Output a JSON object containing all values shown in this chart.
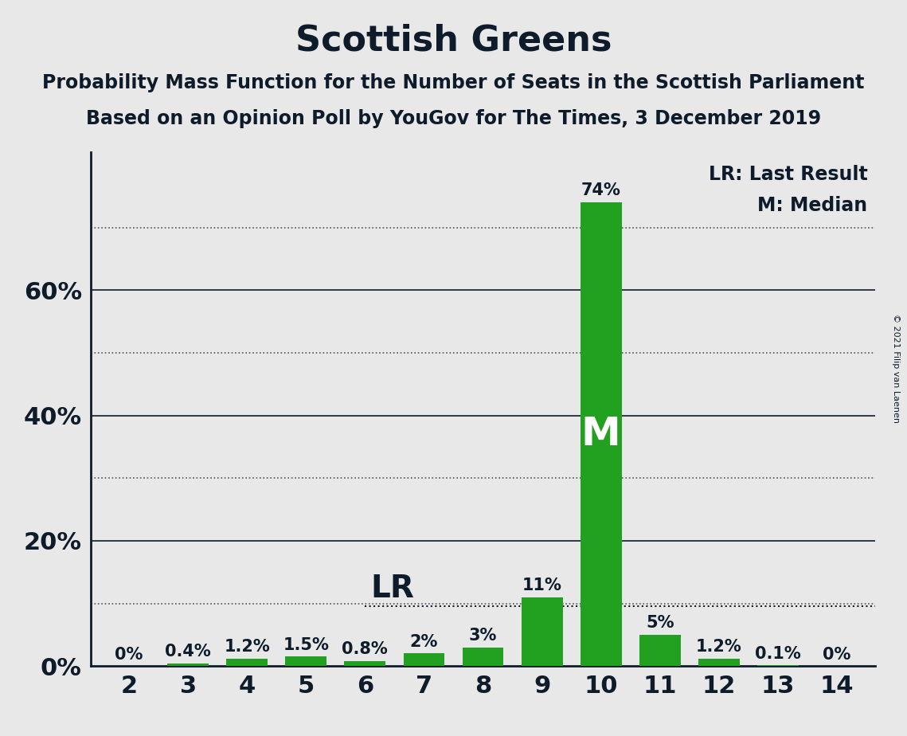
{
  "title": "Scottish Greens",
  "subtitle1": "Probability Mass Function for the Number of Seats in the Scottish Parliament",
  "subtitle2": "Based on an Opinion Poll by YouGov for The Times, 3 December 2019",
  "copyright": "© 2021 Filip van Laenen",
  "seats": [
    2,
    3,
    4,
    5,
    6,
    7,
    8,
    9,
    10,
    11,
    12,
    13,
    14
  ],
  "probabilities": [
    0.0,
    0.4,
    1.2,
    1.5,
    0.8,
    2.0,
    3.0,
    11.0,
    74.0,
    5.0,
    1.2,
    0.1,
    0.0
  ],
  "bar_labels": [
    "0%",
    "0.4%",
    "1.2%",
    "1.5%",
    "0.8%",
    "2%",
    "3%",
    "11%",
    "74%",
    "5%",
    "1.2%",
    "0.1%",
    "0%"
  ],
  "bar_color": "#22a020",
  "median_seat": 10,
  "lr_seat": 6,
  "lr_label": "LR",
  "median_label": "M",
  "legend_lr": "LR: Last Result",
  "legend_m": "M: Median",
  "background_color": "#e8e8e8",
  "text_color": "#0d1b2a",
  "solid_grid_color": "#0d1b2a",
  "dotted_grid_color": "#555555",
  "solid_grid_lines": [
    20,
    40,
    60
  ],
  "dotted_grid_lines": [
    10,
    30,
    50,
    70
  ],
  "lr_line_y": 9.5,
  "ylim": [
    0,
    82
  ],
  "ytick_positions": [
    0,
    20,
    40,
    60
  ],
  "ytick_labels": [
    "0%",
    "20%",
    "40%",
    "60%"
  ],
  "xlim_left": 1.35,
  "xlim_right": 14.65,
  "title_fontsize": 32,
  "subtitle_fontsize": 17,
  "tick_fontsize": 22,
  "legend_fontsize": 17,
  "bar_label_fontsize": 15,
  "median_label_fontsize": 36,
  "lr_label_fontsize": 28,
  "copyright_fontsize": 8
}
